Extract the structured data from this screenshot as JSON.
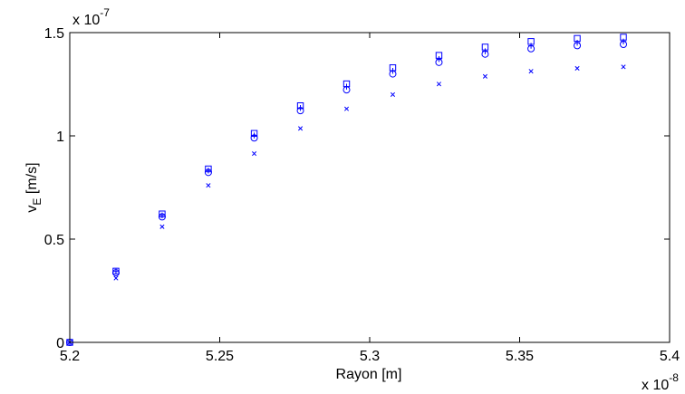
{
  "chart_data": {
    "type": "scatter",
    "xlabel": "Rayon [m]",
    "ylabel_main": "v",
    "ylabel_sub": "E",
    "ylabel_unit": " [m/s]",
    "x_exponent_base": "x 10",
    "x_exponent_power": "-8",
    "y_exponent_base": "x 10",
    "y_exponent_power": "-7",
    "xlim": [
      5.2,
      5.4
    ],
    "ylim": [
      0,
      1.5
    ],
    "x_scale_factor": 1e-08,
    "y_scale_factor": 1e-07,
    "x_ticks": [
      5.2,
      5.25,
      5.3,
      5.35,
      5.4
    ],
    "x_tick_labels": [
      "5.2",
      "5.25",
      "5.3",
      "5.35",
      "5.4"
    ],
    "y_ticks": [
      0,
      0.5,
      1.0,
      1.5
    ],
    "y_tick_labels": [
      "0",
      "0.5",
      "1",
      "1.5"
    ],
    "grid": false,
    "marker_color": "#0000ff",
    "x": [
      5.2,
      5.2154,
      5.2308,
      5.2462,
      5.2615,
      5.2769,
      5.2923,
      5.3077,
      5.3231,
      5.3385,
      5.3538,
      5.3692,
      5.3846
    ],
    "series": [
      {
        "marker": "square",
        "values": [
          0,
          0.345,
          0.622,
          0.84,
          1.012,
          1.146,
          1.252,
          1.33,
          1.39,
          1.43,
          1.457,
          1.472,
          1.478
        ]
      },
      {
        "marker": "plus",
        "values": [
          0,
          0.343,
          0.615,
          0.832,
          1.002,
          1.135,
          1.238,
          1.315,
          1.372,
          1.41,
          1.436,
          1.451,
          1.457
        ]
      },
      {
        "marker": "circle",
        "values": [
          0,
          0.337,
          0.608,
          0.823,
          0.99,
          1.122,
          1.223,
          1.3,
          1.356,
          1.396,
          1.422,
          1.437,
          1.443
        ]
      },
      {
        "marker": "x",
        "values": [
          0,
          0.311,
          0.56,
          0.76,
          0.914,
          1.036,
          1.131,
          1.2,
          1.251,
          1.288,
          1.313,
          1.327,
          1.334
        ]
      }
    ]
  }
}
